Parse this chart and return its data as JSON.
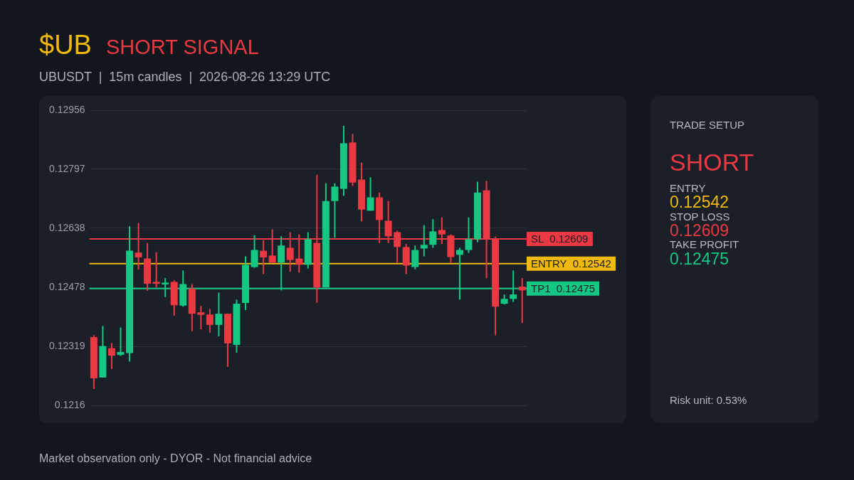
{
  "chart_data": [
    {
      "type": "candlestick",
      "title": "$UB",
      "subtitle": "SHORT SIGNAL",
      "annotations": [
        "UBUSDT  |  15m candles  |  2026-08-26 13:29 UTC",
        "Market observation only - DYOR - Not financial advice"
      ],
      "categories": [
        null,
        null,
        null,
        null,
        null,
        null,
        null,
        null,
        null,
        null,
        null,
        null,
        null,
        null,
        null,
        null,
        null,
        null,
        null,
        null,
        null,
        null,
        null,
        null,
        null,
        null,
        null,
        null,
        null,
        null,
        null,
        null,
        null,
        null,
        null,
        null,
        null,
        null,
        null,
        null,
        null,
        null,
        null,
        null,
        null,
        null,
        null,
        null,
        null
      ],
      "ohlc": [
        [
          0.12344,
          0.12349,
          0.12204,
          0.12233
        ],
        [
          0.12235,
          0.12374,
          0.12235,
          0.1232
        ],
        [
          0.12314,
          0.12328,
          0.12258,
          0.12294
        ],
        [
          0.12296,
          0.1237,
          0.12293,
          0.12304
        ],
        [
          0.12301,
          0.12643,
          0.12278,
          0.12577
        ],
        [
          0.12572,
          0.12652,
          0.12526,
          0.12559
        ],
        [
          0.12556,
          0.12598,
          0.12469,
          0.12488
        ],
        [
          0.12493,
          0.12573,
          0.12478,
          0.12488
        ],
        [
          0.12486,
          0.12503,
          0.12452,
          0.12491
        ],
        [
          0.12493,
          0.12497,
          0.12402,
          0.1243
        ],
        [
          0.12429,
          0.12524,
          0.12426,
          0.12487
        ],
        [
          0.12475,
          0.12487,
          0.1236,
          0.12407
        ],
        [
          0.12411,
          0.12428,
          0.12365,
          0.12404
        ],
        [
          0.12405,
          0.1242,
          0.12356,
          0.12377
        ],
        [
          0.12377,
          0.12464,
          0.12346,
          0.12407
        ],
        [
          0.12407,
          0.12407,
          0.12264,
          0.12327
        ],
        [
          0.12323,
          0.12445,
          0.12302,
          0.12434
        ],
        [
          0.12436,
          0.12562,
          0.12417,
          0.12539
        ],
        [
          0.12533,
          0.12619,
          0.12531,
          0.12579
        ],
        [
          0.12577,
          0.12606,
          0.12514,
          0.12559
        ],
        [
          0.12564,
          0.12635,
          0.12545,
          0.12545
        ],
        [
          0.12545,
          0.12616,
          0.1247,
          0.12591
        ],
        [
          0.12585,
          0.12627,
          0.1252,
          0.12552
        ],
        [
          0.12556,
          0.12621,
          0.12518,
          0.12539
        ],
        [
          0.12539,
          0.12627,
          0.12529,
          0.12608
        ],
        [
          0.12598,
          0.12782,
          0.12437,
          0.12478
        ],
        [
          0.12478,
          0.12759,
          0.12478,
          0.12711
        ],
        [
          0.12711,
          0.12759,
          0.12612,
          0.1275
        ],
        [
          0.12744,
          0.12914,
          0.12725,
          0.12867
        ],
        [
          0.12869,
          0.12892,
          0.12752,
          0.12761
        ],
        [
          0.12769,
          0.12815,
          0.12656,
          0.12688
        ],
        [
          0.12685,
          0.12775,
          0.12685,
          0.12721
        ],
        [
          0.12721,
          0.12734,
          0.12598,
          0.1266
        ],
        [
          0.12658,
          0.12711,
          0.12598,
          0.12616
        ],
        [
          0.12627,
          0.12631,
          0.12545,
          0.12587
        ],
        [
          0.12587,
          0.12595,
          0.12514,
          0.12537
        ],
        [
          0.12533,
          0.12591,
          0.12527,
          0.12579
        ],
        [
          0.12583,
          0.12646,
          0.12562,
          0.12593
        ],
        [
          0.12593,
          0.12662,
          0.12585,
          0.12629
        ],
        [
          0.12633,
          0.12667,
          0.12595,
          0.12621
        ],
        [
          0.12618,
          0.12621,
          0.12545,
          0.1256
        ],
        [
          0.12566,
          0.12585,
          0.12445,
          0.12579
        ],
        [
          0.12579,
          0.12667,
          0.12571,
          0.12608
        ],
        [
          0.12608,
          0.12763,
          0.126,
          0.12734
        ],
        [
          0.1274,
          0.12765,
          0.12503,
          0.1261
        ],
        [
          0.1261,
          0.12615,
          0.12349,
          0.12426
        ],
        [
          0.12434,
          0.12459,
          0.12432,
          0.12447
        ],
        [
          0.12447,
          0.12524,
          0.12439,
          0.12459
        ],
        [
          0.1248,
          0.12503,
          0.12382,
          0.1247
        ]
      ],
      "colors": [
        "#ea3943",
        "#16c784",
        "#ea3943",
        "#16c784",
        "#16c784",
        "#ea3943",
        "#ea3943",
        "#ea3943",
        "#16c784",
        "#ea3943",
        "#16c784",
        "#ea3943",
        "#ea3943",
        "#ea3943",
        "#16c784",
        "#ea3943",
        "#16c784",
        "#16c784",
        "#16c784",
        "#ea3943",
        "#ea3943",
        "#16c784",
        "#ea3943",
        "#ea3943",
        "#16c784",
        "#ea3943",
        "#16c784",
        "#16c784",
        "#16c784",
        "#ea3943",
        "#ea3943",
        "#16c784",
        "#ea3943",
        "#ea3943",
        "#ea3943",
        "#ea3943",
        "#16c784",
        "#16c784",
        "#16c784",
        "#ea3943",
        "#ea3943",
        "#16c784",
        "#16c784",
        "#16c784",
        "#ea3943",
        "#ea3943",
        "#16c784",
        "#16c784",
        "#ea3943"
      ],
      "ylim": [
        0.1216,
        0.12956
      ],
      "yticks": [
        0.1216,
        0.12319,
        0.12478,
        0.12638,
        0.12797,
        0.12956
      ],
      "grid": "y",
      "tick_labels": "y",
      "ref_lines": [
        {
          "axis": "y",
          "value": 0.12609,
          "label": "SL  0.12609",
          "color": "#ea3943"
        },
        {
          "axis": "y",
          "value": 0.12542,
          "label": "ENTRY  0.12542",
          "color": "#f0b90b"
        },
        {
          "axis": "y",
          "value": 0.12475,
          "label": "TP1  0.12475",
          "color": "#16c784"
        }
      ]
    },
    {
      "type": "other",
      "title": "TRADE SETUP",
      "annotations": [
        "SHORT",
        "ENTRY",
        "0.12542",
        "STOP LOSS",
        "0.12609",
        "TAKE PROFIT",
        "0.12475",
        "Risk unit: 0.53%"
      ]
    }
  ]
}
